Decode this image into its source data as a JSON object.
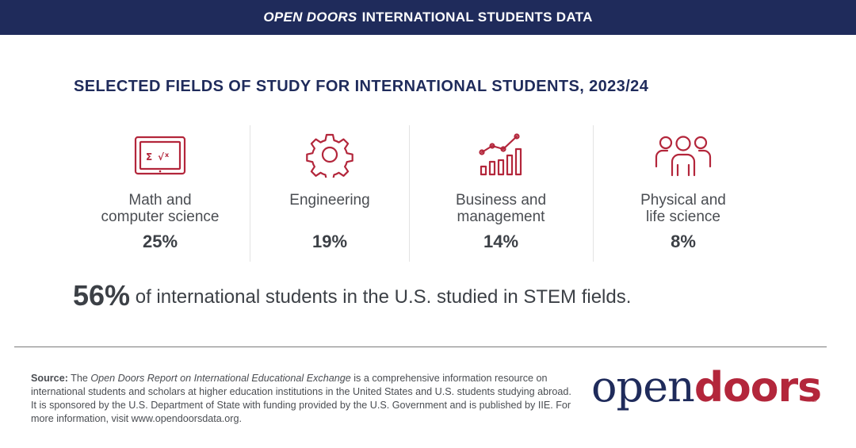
{
  "header": {
    "title_italic": "OPEN DOORS",
    "title_rest": "INTERNATIONAL STUDENTS DATA"
  },
  "title": "SELECTED FIELDS OF STUDY FOR INTERNATIONAL STUDENTS, 2023/24",
  "fields": [
    {
      "icon": "laptop-math-icon",
      "label_line1": "Math and",
      "label_line2": "computer science",
      "percent": "25%"
    },
    {
      "icon": "gear-icon",
      "label_line1": "Engineering",
      "label_line2": "",
      "percent": "19%"
    },
    {
      "icon": "growth-chart-icon",
      "label_line1": "Business and",
      "label_line2": "management",
      "percent": "14%"
    },
    {
      "icon": "people-group-icon",
      "label_line1": "Physical and",
      "label_line2": "life science",
      "percent": "8%"
    }
  ],
  "stem": {
    "percent": "56%",
    "text": "of international students in the U.S. studied in STEM fields."
  },
  "source": {
    "label": "Source:",
    "intro": "The",
    "report": "Open Doors Report on International Educational Exchange",
    "text": "is a comprehensive information resource on international students and scholars at higher education institutions in the United States and U.S. students studying abroad. It is sponsored by the U.S. Department of State with funding provided by the U.S. Government and is published by IIE. For more information, visit www.opendoorsdata.org."
  },
  "logo": {
    "part1": "open",
    "part2": "doors",
    "registered": "®"
  },
  "colors": {
    "navy": "#1f2b5b",
    "red": "#b3263b",
    "text": "#4a4d52"
  }
}
